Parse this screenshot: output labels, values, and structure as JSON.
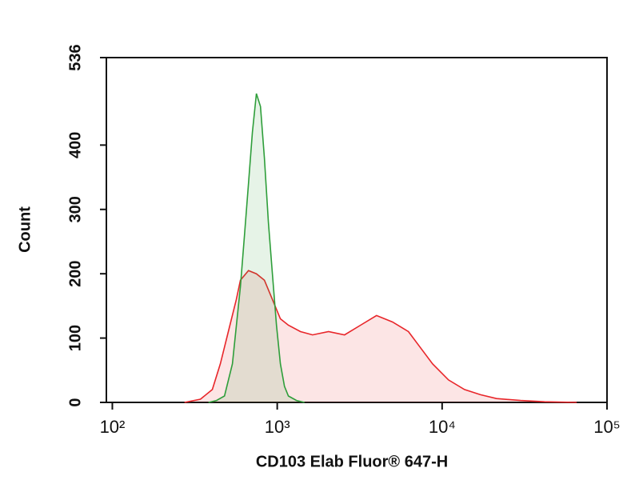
{
  "chart_data": {
    "type": "line",
    "xscale": "log",
    "fill": true,
    "x_label": "CD103 Elab Fluor® 647-H",
    "y_label": "Count",
    "xlim": [
      92,
      100000
    ],
    "ylim": [
      0,
      536
    ],
    "xticks": [
      {
        "value": 100,
        "label": "10²"
      },
      {
        "value": 1000,
        "label": "10³"
      },
      {
        "value": 10000,
        "label": "10⁴"
      },
      {
        "value": 100000,
        "label": "10⁵"
      }
    ],
    "yticks": [
      0,
      100,
      200,
      300,
      400,
      536
    ],
    "series": [
      {
        "color": "#e8262a",
        "x": [
          274,
          342,
          404,
          452,
          505,
          565,
          598,
          669,
          748,
          836,
          935,
          1045,
          1169,
          1383,
          1637,
          2047,
          2560,
          3199,
          3999,
          5000,
          6250,
          7395,
          8750,
          10935,
          13670,
          17090,
          21370,
          29900,
          41800,
          65500
        ],
        "values": [
          0,
          5,
          20,
          60,
          110,
          160,
          190,
          205,
          200,
          190,
          160,
          130,
          120,
          110,
          105,
          110,
          105,
          120,
          135,
          125,
          110,
          85,
          60,
          35,
          20,
          12,
          6,
          3,
          1,
          0
        ]
      },
      {
        "color": "#2e9e3a",
        "x": [
          383,
          428,
          479,
          535,
          598,
          633,
          669,
          707,
          748,
          791,
          836,
          884,
          935,
          989,
          1045,
          1106,
          1169,
          1309,
          1463
        ],
        "values": [
          0,
          3,
          10,
          60,
          180,
          260,
          340,
          420,
          480,
          460,
          380,
          280,
          200,
          120,
          60,
          25,
          10,
          3,
          0
        ]
      }
    ]
  }
}
